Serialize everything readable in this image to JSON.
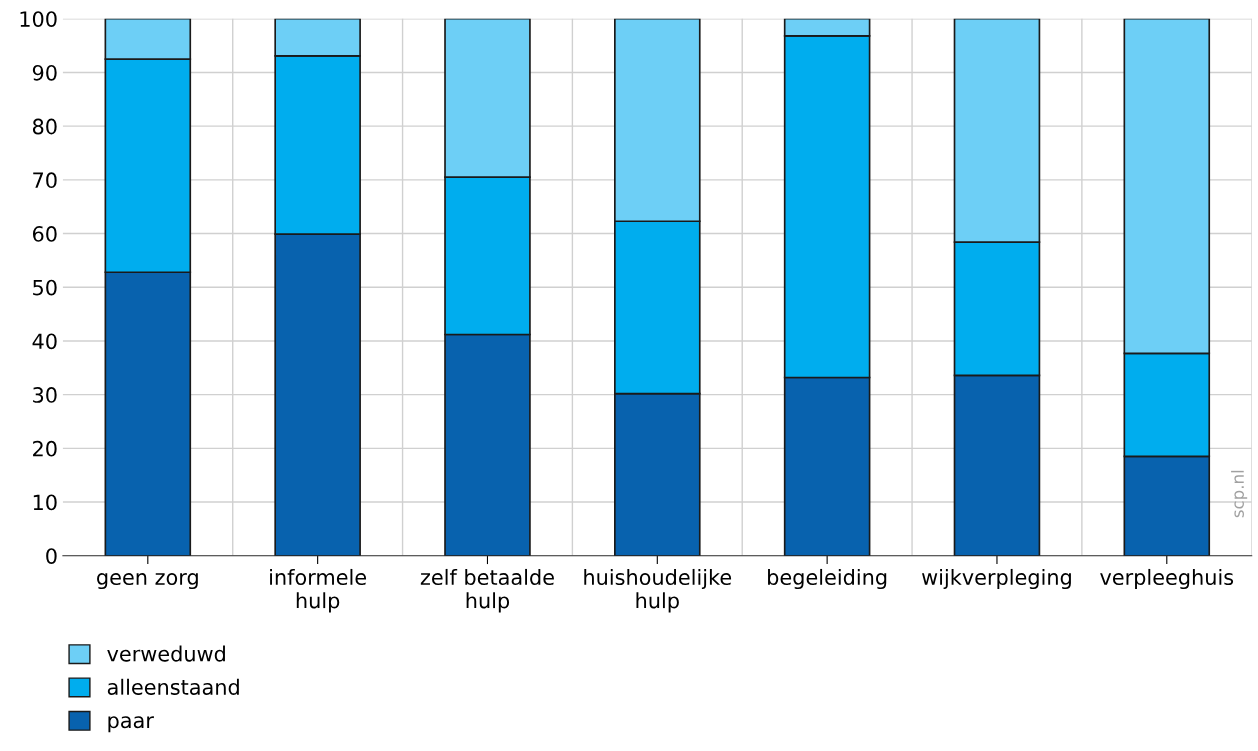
{
  "chart_data": {
    "type": "bar",
    "stacked": true,
    "categories": [
      "geen zorg",
      "informele\nhulp",
      "zelf betaalde\nhulp",
      "huishoudelijke\nhulp",
      "begeleiding",
      "wijkverpleging",
      "verpleeghuis"
    ],
    "series": [
      {
        "name": "paar",
        "color": "#0862ae",
        "values": [
          52.8,
          59.9,
          41.2,
          30.2,
          33.2,
          33.6,
          18.5
        ]
      },
      {
        "name": "alleenstaand",
        "color": "#00adee",
        "values": [
          39.7,
          33.2,
          29.3,
          32.1,
          63.6,
          24.8,
          19.2
        ]
      },
      {
        "name": "verweduwd",
        "color": "#6dcff6",
        "values": [
          7.5,
          6.9,
          29.5,
          37.7,
          3.2,
          41.6,
          62.3
        ]
      }
    ],
    "ylim": [
      0,
      100
    ],
    "yticks": [
      0,
      10,
      20,
      30,
      40,
      50,
      60,
      70,
      80,
      90,
      100
    ],
    "grid": true,
    "legend": "bottom left",
    "annotations": [
      "scp.nl"
    ]
  }
}
